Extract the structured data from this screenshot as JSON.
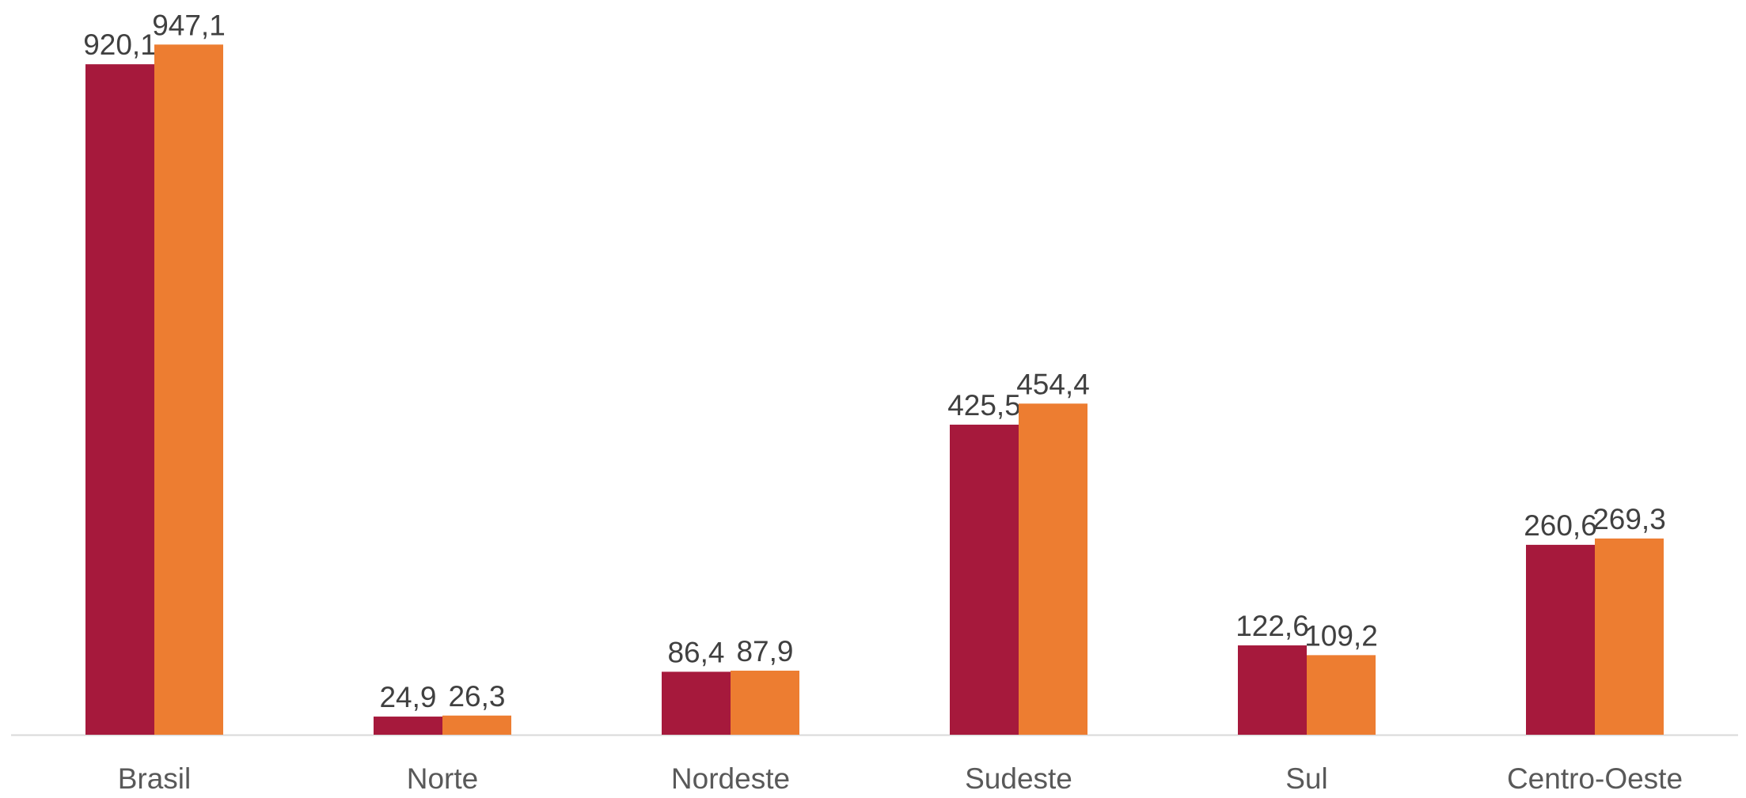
{
  "chart_data": {
    "type": "bar",
    "categories": [
      "Brasil",
      "Norte",
      "Nordeste",
      "Sudeste",
      "Sul",
      "Centro-Oeste"
    ],
    "series": [
      {
        "color": "#A6193C",
        "values": [
          920.1,
          24.9,
          86.4,
          425.5,
          122.6,
          260.6
        ],
        "labels": [
          "920,1",
          "24,9",
          "86,4",
          "425,5",
          "122,6",
          "260,6"
        ]
      },
      {
        "color": "#ED7D31",
        "values": [
          947.1,
          26.3,
          87.9,
          454.4,
          109.2,
          269.3
        ],
        "labels": [
          "947,1",
          "26,3",
          "87,9",
          "454,4",
          "109,2",
          "269,3"
        ]
      }
    ],
    "ylim": [
      0,
      1000
    ],
    "grid": false,
    "axis_line_color": "#D9D9D9"
  }
}
